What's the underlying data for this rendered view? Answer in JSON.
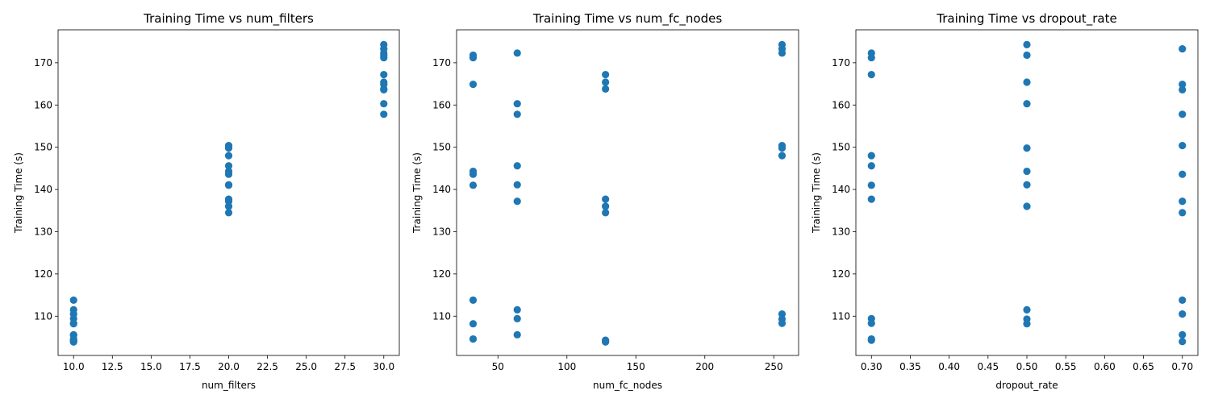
{
  "colors": {
    "marker": "#1f77b4",
    "axis": "#000000",
    "background": "#ffffff"
  },
  "chart_data": [
    {
      "type": "scatter",
      "title": "Training Time vs num_filters",
      "xlabel": "num_filters",
      "ylabel": "Training Time (s)",
      "xlim": [
        9,
        31
      ],
      "ylim": [
        100.7,
        177.8
      ],
      "grid": false,
      "xticks": [
        10,
        12.5,
        15,
        17.5,
        20,
        22.5,
        25,
        27.5,
        30
      ],
      "xtick_labels": [
        "10.0",
        "12.5",
        "15.0",
        "17.5",
        "20.0",
        "22.5",
        "25.0",
        "27.5",
        "30.0"
      ],
      "yticks": [
        110,
        120,
        130,
        140,
        150,
        160,
        170
      ],
      "ytick_labels": [
        "110",
        "120",
        "130",
        "140",
        "150",
        "160",
        "170"
      ],
      "series": [
        {
          "x": [
            10,
            10,
            10,
            10,
            10,
            10,
            10,
            10,
            10,
            10,
            10,
            10,
            20,
            20,
            20,
            20,
            20,
            20,
            20,
            20,
            20,
            20,
            20,
            20,
            30,
            30,
            30,
            30,
            30,
            30,
            30,
            30,
            30,
            30,
            30,
            30
          ],
          "y": [
            113.8,
            111.5,
            110.5,
            109.4,
            108.3,
            108.2,
            105.6,
            105.5,
            104.6,
            104.3,
            104.0,
            103.9,
            150.4,
            149.8,
            148.0,
            145.6,
            144.3,
            143.6,
            141.1,
            141.0,
            137.7,
            137.2,
            136.0,
            134.5,
            174.3,
            173.3,
            172.3,
            171.8,
            171.2,
            167.2,
            165.4,
            164.9,
            163.8,
            163.6,
            160.3,
            157.8
          ]
        }
      ]
    },
    {
      "type": "scatter",
      "title": "Training Time vs num_fc_nodes",
      "xlabel": "num_fc_nodes",
      "ylabel": "Training Time (s)",
      "xlim": [
        20,
        268
      ],
      "ylim": [
        100.7,
        177.8
      ],
      "grid": false,
      "xticks": [
        50,
        100,
        150,
        200,
        250
      ],
      "xtick_labels": [
        "50",
        "100",
        "150",
        "200",
        "250"
      ],
      "yticks": [
        110,
        120,
        130,
        140,
        150,
        160,
        170
      ],
      "ytick_labels": [
        "110",
        "120",
        "130",
        "140",
        "150",
        "160",
        "170"
      ],
      "series": [
        {
          "x": [
            32,
            32,
            32,
            32,
            32,
            32,
            32,
            32,
            32,
            64,
            64,
            64,
            64,
            64,
            64,
            64,
            64,
            64,
            128,
            128,
            128,
            128,
            128,
            128,
            128,
            128,
            128,
            256,
            256,
            256,
            256,
            256,
            256,
            256,
            256,
            256
          ],
          "y": [
            171.8,
            171.2,
            164.9,
            144.3,
            143.6,
            141.0,
            113.8,
            108.2,
            104.6,
            172.3,
            160.3,
            157.8,
            145.6,
            141.1,
            137.2,
            111.5,
            109.4,
            105.6,
            167.2,
            165.4,
            163.8,
            137.7,
            136.0,
            134.5,
            104.3,
            104.0,
            103.9,
            174.3,
            173.3,
            172.3,
            150.4,
            149.8,
            148.0,
            110.5,
            109.3,
            108.3
          ]
        }
      ]
    },
    {
      "type": "scatter",
      "title": "Training Time vs dropout_rate",
      "xlabel": "dropout_rate",
      "ylabel": "Training Time (s)",
      "xlim": [
        0.28,
        0.72
      ],
      "ylim": [
        100.7,
        177.8
      ],
      "grid": false,
      "xticks": [
        0.3,
        0.35,
        0.4,
        0.45,
        0.5,
        0.55,
        0.6,
        0.65,
        0.7
      ],
      "xtick_labels": [
        "0.30",
        "0.35",
        "0.40",
        "0.45",
        "0.50",
        "0.55",
        "0.60",
        "0.65",
        "0.70"
      ],
      "yticks": [
        110,
        120,
        130,
        140,
        150,
        160,
        170
      ],
      "ytick_labels": [
        "110",
        "120",
        "130",
        "140",
        "150",
        "160",
        "170"
      ],
      "series": [
        {
          "x": [
            0.3,
            0.3,
            0.3,
            0.3,
            0.3,
            0.3,
            0.3,
            0.3,
            0.3,
            0.3,
            0.3,
            0.5,
            0.5,
            0.5,
            0.5,
            0.5,
            0.5,
            0.5,
            0.5,
            0.5,
            0.5,
            0.5,
            0.7,
            0.7,
            0.7,
            0.7,
            0.7,
            0.7,
            0.7,
            0.7,
            0.7,
            0.7,
            0.7,
            0.7
          ],
          "y": [
            172.3,
            171.2,
            167.2,
            148.0,
            145.6,
            141.0,
            137.7,
            109.4,
            108.3,
            104.6,
            104.3,
            174.3,
            171.8,
            165.4,
            160.3,
            149.8,
            144.3,
            141.1,
            136.0,
            111.5,
            109.3,
            108.2,
            173.3,
            164.9,
            163.6,
            157.8,
            150.4,
            143.6,
            137.2,
            134.5,
            113.8,
            110.5,
            105.6,
            104.0
          ]
        }
      ]
    }
  ]
}
